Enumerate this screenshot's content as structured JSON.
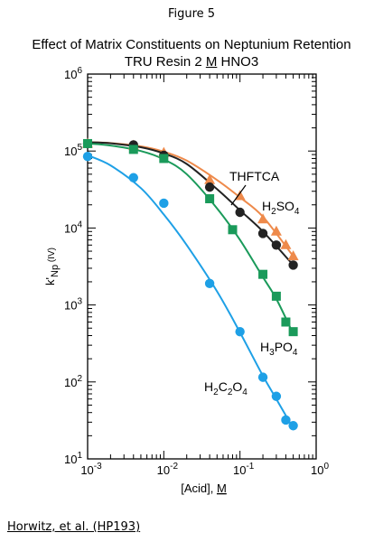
{
  "figure_label": "Figure 5",
  "title_line1": "Effect of Matrix Constituents on Neptunium Retention",
  "title_line2_prefix": "TRU Resin 2 ",
  "title_line2_unit": "M",
  "title_line2_suffix": " HNO3",
  "credit": "Horwitz, et al. (HP193)",
  "colors": {
    "THFTCA": "#ee8a4b",
    "H2SO4": "#222222",
    "H3PO4": "#1a9a5a",
    "H2C2O4": "#1ea0e6"
  },
  "chart_data": {
    "type": "scatter",
    "title": "Effect of Matrix Constituents on Neptunium Retention",
    "subtitle": "TRU Resin 2 M HNO3",
    "xlabel": "[Acid], M",
    "ylabel": "k'Np (IV)",
    "xscale": "log",
    "yscale": "log",
    "xlim": [
      0.001,
      1
    ],
    "ylim": [
      10,
      1000000
    ],
    "x_ticks": [
      "10-3",
      "10-2",
      "10-1",
      "100"
    ],
    "y_ticks": [
      "101",
      "102",
      "103",
      "104",
      "105",
      "106"
    ],
    "grid": false,
    "series": [
      {
        "name": "THFTCA",
        "marker": "triangle",
        "x": [
          0.001,
          0.004,
          0.01,
          0.04,
          0.1,
          0.2,
          0.3,
          0.4,
          0.5
        ],
        "y": [
          125000,
          118000,
          95000,
          42000,
          26000,
          13000,
          9000,
          6000,
          4300
        ],
        "curve_x": [
          0.001,
          0.002,
          0.005,
          0.01,
          0.02,
          0.05,
          0.1,
          0.2,
          0.5
        ],
        "curve_y": [
          130000,
          127000,
          115000,
          98000,
          75000,
          42000,
          25000,
          14000,
          4300
        ]
      },
      {
        "name": "H2SO4",
        "marker": "circle",
        "x": [
          0.001,
          0.004,
          0.01,
          0.04,
          0.1,
          0.2,
          0.3,
          0.5
        ],
        "y": [
          125000,
          120000,
          88000,
          34000,
          16000,
          8500,
          6000,
          3300
        ],
        "curve_x": [
          0.001,
          0.002,
          0.005,
          0.01,
          0.02,
          0.05,
          0.1,
          0.2,
          0.5
        ],
        "curve_y": [
          130000,
          126000,
          112000,
          93000,
          68000,
          32000,
          17000,
          9000,
          3300
        ]
      },
      {
        "name": "H3PO4",
        "marker": "square",
        "x": [
          0.001,
          0.004,
          0.01,
          0.04,
          0.08,
          0.2,
          0.3,
          0.4,
          0.5
        ],
        "y": [
          125000,
          105000,
          80000,
          24000,
          9500,
          2500,
          1300,
          600,
          450
        ],
        "curve_x": [
          0.001,
          0.002,
          0.005,
          0.01,
          0.02,
          0.05,
          0.1,
          0.2,
          0.3,
          0.5
        ],
        "curve_y": [
          125000,
          118000,
          100000,
          78000,
          50000,
          18000,
          7000,
          2300,
          1200,
          420
        ]
      },
      {
        "name": "H2C2O4",
        "marker": "circle",
        "x": [
          0.001,
          0.004,
          0.01,
          0.04,
          0.1,
          0.2,
          0.3,
          0.4,
          0.5
        ],
        "y": [
          85000,
          45000,
          21000,
          1900,
          450,
          115,
          65,
          32,
          27
        ],
        "curve_x": [
          0.001,
          0.002,
          0.005,
          0.01,
          0.02,
          0.05,
          0.1,
          0.2,
          0.3,
          0.5
        ],
        "curve_y": [
          88000,
          65000,
          33000,
          15000,
          6000,
          1500,
          440,
          120,
          60,
          25
        ]
      }
    ]
  }
}
